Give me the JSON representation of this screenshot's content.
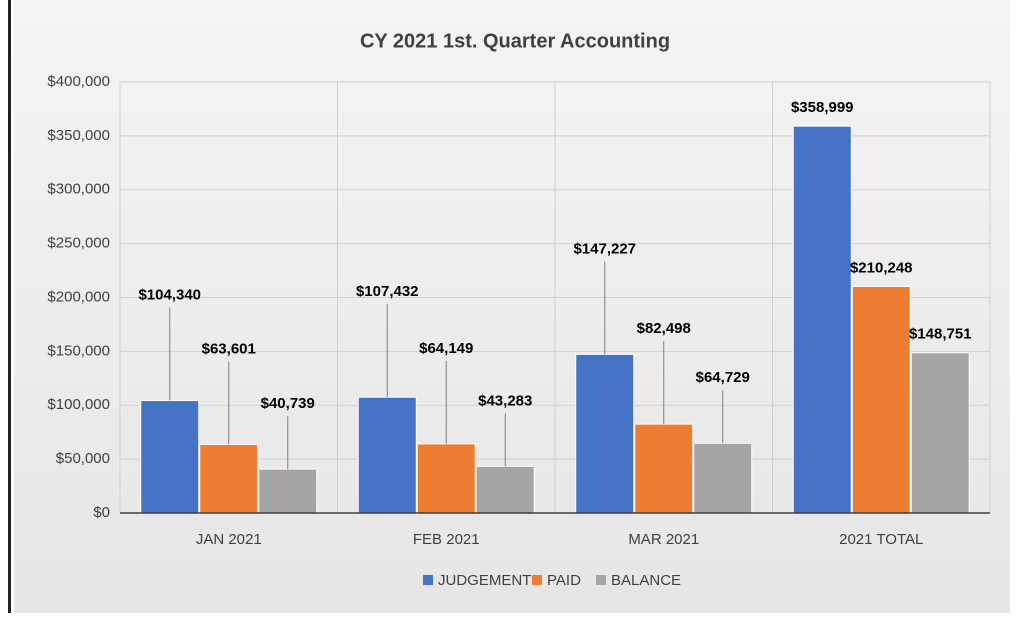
{
  "chart_data": {
    "type": "bar",
    "title": "CY 2021 1st. Quarter Accounting",
    "categories": [
      "JAN 2021",
      "FEB 2021",
      "MAR 2021",
      "2021 TOTAL"
    ],
    "series": [
      {
        "name": "JUDGEMENT",
        "color": "#4472c4",
        "values": [
          104340,
          107432,
          147227,
          358999
        ],
        "value_labels": [
          "$104,340",
          "$107,432",
          "$147,227",
          "$358,999"
        ]
      },
      {
        "name": "PAID",
        "color": "#ed7d31",
        "values": [
          63601,
          64149,
          82498,
          210248
        ],
        "value_labels": [
          "$63,601",
          "$64,149",
          "$82,498",
          "$210,248"
        ]
      },
      {
        "name": "BALANCE",
        "color": "#a5a5a5",
        "values": [
          40739,
          43283,
          64729,
          148751
        ],
        "value_labels": [
          "$40,739",
          "$43,283",
          "$64,729",
          "$148,751"
        ]
      }
    ],
    "ylim": [
      0,
      400000
    ],
    "yticks": [
      {
        "value": 0,
        "label": "$0"
      },
      {
        "value": 50000,
        "label": "$50,000"
      },
      {
        "value": 100000,
        "label": "$100,000"
      },
      {
        "value": 150000,
        "label": "$150,000"
      },
      {
        "value": 200000,
        "label": "$200,000"
      },
      {
        "value": 250000,
        "label": "$250,000"
      },
      {
        "value": 300000,
        "label": "$300,000"
      },
      {
        "value": 350000,
        "label": "$350,000"
      },
      {
        "value": 400000,
        "label": "$400,000"
      }
    ],
    "grid": true,
    "legend": "bottom"
  }
}
